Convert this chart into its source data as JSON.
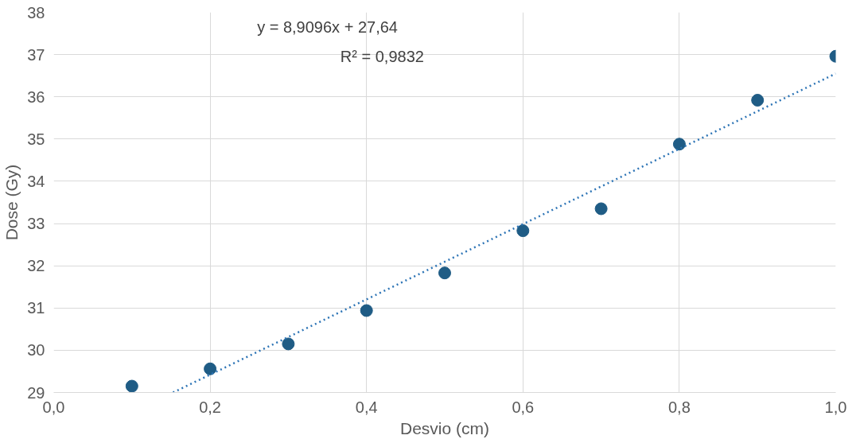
{
  "chart_data": {
    "type": "scatter",
    "xlabel": "Desvio (cm)",
    "ylabel": "Dose (Gy)",
    "annotations": [
      "y = 8,9096x + 27,64",
      "R² = 0,9832"
    ],
    "xlim": [
      0,
      1
    ],
    "ylim": [
      29,
      38
    ],
    "xticks": [
      {
        "value": 0,
        "label": "0,0"
      },
      {
        "value": 0.2,
        "label": "0,2"
      },
      {
        "value": 0.4,
        "label": "0,4"
      },
      {
        "value": 0.6,
        "label": "0,6"
      },
      {
        "value": 0.8,
        "label": "0,8"
      },
      {
        "value": 1,
        "label": "1,0"
      }
    ],
    "yticks": [
      29,
      30,
      31,
      32,
      33,
      34,
      35,
      36,
      37,
      38
    ],
    "grid": true,
    "series": [
      {
        "marker": "circle",
        "color": "#1f5c85",
        "x": [
          0.1,
          0.2,
          0.3,
          0.4,
          0.5,
          0.6,
          0.7,
          0.8,
          0.9,
          1.0
        ],
        "values": [
          29.15,
          29.56,
          30.15,
          30.94,
          31.83,
          32.83,
          33.35,
          34.88,
          35.92,
          36.96
        ]
      },
      {
        "type": "line",
        "color": "#2e75b6",
        "line_style": "dotted",
        "x": [
          0.1526,
          1.0
        ],
        "values": [
          29.0,
          36.55
        ]
      }
    ]
  }
}
